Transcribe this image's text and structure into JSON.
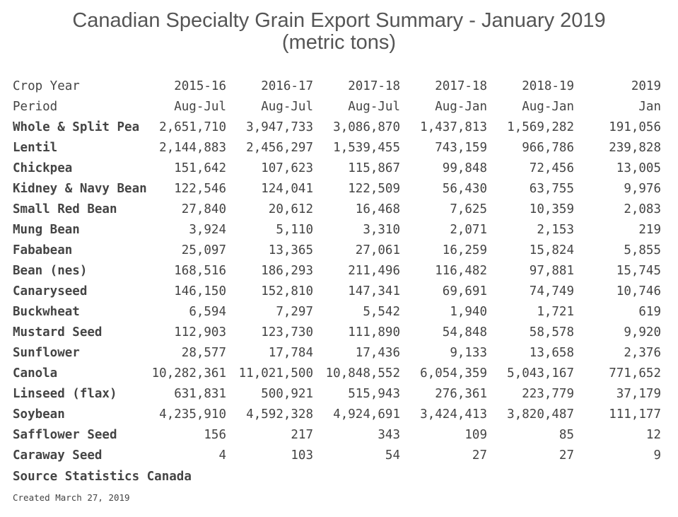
{
  "title": {
    "line1": "Canadian Specialty Grain Export Summary - January 2019",
    "line2": "(metric tons)"
  },
  "table": {
    "header_rows": [
      {
        "label": "Crop Year",
        "values": [
          "2015-16",
          "2016-17",
          "2017-18",
          "2017-18",
          "2018-19",
          "2019"
        ]
      },
      {
        "label": "Period",
        "values": [
          "Aug-Jul",
          "Aug-Jul",
          "Aug-Jul",
          "Aug-Jan",
          "Aug-Jan",
          "Jan"
        ]
      }
    ],
    "rows": [
      {
        "crop": "Whole & Split Pea",
        "values": [
          "2,651,710",
          "3,947,733",
          "3,086,870",
          "1,437,813",
          "1,569,282",
          "191,056"
        ]
      },
      {
        "crop": "Lentil",
        "values": [
          "2,144,883",
          "2,456,297",
          "1,539,455",
          "743,159",
          "966,786",
          "239,828"
        ]
      },
      {
        "crop": "Chickpea",
        "values": [
          "151,642",
          "107,623",
          "115,867",
          "99,848",
          "72,456",
          "13,005"
        ]
      },
      {
        "crop": "Kidney & Navy Bean",
        "values": [
          "122,546",
          "124,041",
          "122,509",
          "56,430",
          "63,755",
          "9,976"
        ]
      },
      {
        "crop": "Small Red Bean",
        "values": [
          "27,840",
          "20,612",
          "16,468",
          "7,625",
          "10,359",
          "2,083"
        ]
      },
      {
        "crop": "Mung Bean",
        "values": [
          "3,924",
          "5,110",
          "3,310",
          "2,071",
          "2,153",
          "219"
        ]
      },
      {
        "crop": "Fababean",
        "values": [
          "25,097",
          "13,365",
          "27,061",
          "16,259",
          "15,824",
          "5,855"
        ]
      },
      {
        "crop": "Bean (nes)",
        "values": [
          "168,516",
          "186,293",
          "211,496",
          "116,482",
          "97,881",
          "15,745"
        ]
      },
      {
        "crop": "Canaryseed",
        "values": [
          "146,150",
          "152,810",
          "147,341",
          "69,691",
          "74,749",
          "10,746"
        ]
      },
      {
        "crop": "Buckwheat",
        "values": [
          "6,594",
          "7,297",
          "5,542",
          "1,940",
          "1,721",
          "619"
        ]
      },
      {
        "crop": "Mustard Seed",
        "values": [
          "112,903",
          "123,730",
          "111,890",
          "54,848",
          "58,578",
          "9,920"
        ]
      },
      {
        "crop": "Sunflower",
        "values": [
          "28,577",
          "17,784",
          "17,436",
          "9,133",
          "13,658",
          "2,376"
        ]
      },
      {
        "crop": "Canola",
        "values": [
          "10,282,361",
          "11,021,500",
          "10,848,552",
          "6,054,359",
          "5,043,167",
          "771,652"
        ]
      },
      {
        "crop": "Linseed (flax)",
        "values": [
          "631,831",
          "500,921",
          "515,943",
          "276,361",
          "223,779",
          "37,179"
        ]
      },
      {
        "crop": "Soybean",
        "values": [
          "4,235,910",
          "4,592,328",
          "4,924,691",
          "3,424,413",
          "3,820,487",
          "111,177"
        ]
      },
      {
        "crop": "Safflower Seed",
        "values": [
          "156",
          "217",
          "343",
          "109",
          "85",
          "12"
        ]
      },
      {
        "crop": "Caraway Seed",
        "values": [
          "4",
          "103",
          "54",
          "27",
          "27",
          "9"
        ]
      }
    ]
  },
  "source": "Source Statistics Canada",
  "created": "Created March 27, 2019"
}
